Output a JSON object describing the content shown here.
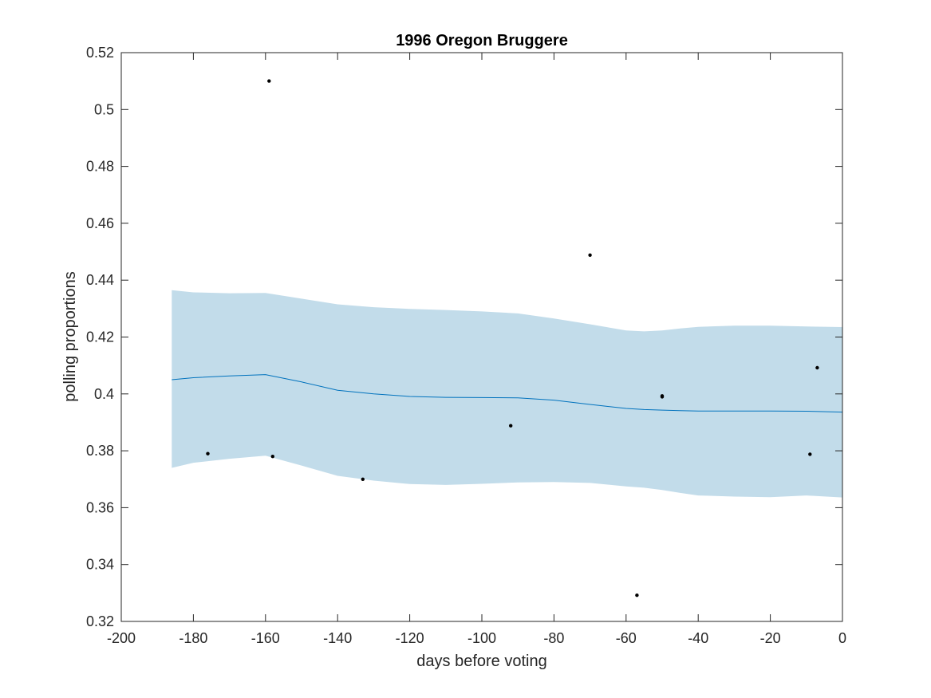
{
  "chart_data": {
    "type": "scatter",
    "title": "1996 Oregon Bruggere",
    "xlabel": "days before voting",
    "ylabel": "polling proportions",
    "xlim": [
      -200,
      0
    ],
    "ylim": [
      0.32,
      0.52
    ],
    "xticks": [
      -200,
      -180,
      -160,
      -140,
      -120,
      -100,
      -80,
      -60,
      -40,
      -20,
      0
    ],
    "xtick_labels": [
      "-200",
      "-180",
      "-160",
      "-140",
      "-120",
      "-100",
      "-80",
      "-60",
      "-40",
      "-20",
      "0"
    ],
    "yticks": [
      0.32,
      0.34,
      0.36,
      0.38,
      0.4,
      0.42,
      0.44,
      0.46,
      0.48,
      0.5,
      0.52
    ],
    "ytick_labels": [
      "0.32",
      "0.34",
      "0.36",
      "0.38",
      "0.4",
      "0.42",
      "0.44",
      "0.46",
      "0.48",
      "0.5",
      "0.52"
    ],
    "grid": false,
    "colors": {
      "band": "#c2dcea",
      "trend": "#0072bd",
      "points": "#000000",
      "axes": "#262626"
    },
    "series": [
      {
        "type": "area",
        "x": [
          -186,
          -180,
          -170,
          -160,
          -150,
          -140,
          -130,
          -120,
          -110,
          -100,
          -90,
          -80,
          -70,
          -60,
          -55,
          -50,
          -45,
          -40,
          -30,
          -20,
          -10,
          0
        ],
        "upper": [
          0.4365,
          0.4357,
          0.4354,
          0.4355,
          0.4335,
          0.4315,
          0.4305,
          0.4299,
          0.4295,
          0.429,
          0.4283,
          0.4265,
          0.4245,
          0.4223,
          0.422,
          0.4223,
          0.423,
          0.4236,
          0.424,
          0.424,
          0.4237,
          0.4235
        ],
        "lower": [
          0.374,
          0.3758,
          0.3772,
          0.3783,
          0.3748,
          0.3712,
          0.3695,
          0.3683,
          0.368,
          0.3684,
          0.3689,
          0.369,
          0.3687,
          0.3675,
          0.367,
          0.3662,
          0.3652,
          0.3643,
          0.3639,
          0.3637,
          0.3643,
          0.3636
        ]
      },
      {
        "type": "line",
        "x": [
          -186,
          -180,
          -170,
          -160,
          -150,
          -140,
          -130,
          -120,
          -110,
          -100,
          -90,
          -80,
          -70,
          -60,
          -55,
          -50,
          -45,
          -40,
          -30,
          -20,
          -10,
          0
        ],
        "y": [
          0.405,
          0.4057,
          0.4063,
          0.4068,
          0.4042,
          0.4013,
          0.4,
          0.3991,
          0.3988,
          0.3987,
          0.3986,
          0.3978,
          0.3963,
          0.3949,
          0.3945,
          0.3943,
          0.3941,
          0.394,
          0.394,
          0.394,
          0.3939,
          0.3936
        ]
      },
      {
        "type": "scatter",
        "x": [
          -159,
          -176,
          -158,
          -133,
          -92,
          -70,
          -57,
          -50,
          -50,
          -9,
          -7
        ],
        "y": [
          0.51,
          0.379,
          0.378,
          0.37,
          0.3888,
          0.4488,
          0.3292,
          0.399,
          0.3993,
          0.3788,
          0.4092
        ]
      }
    ]
  }
}
